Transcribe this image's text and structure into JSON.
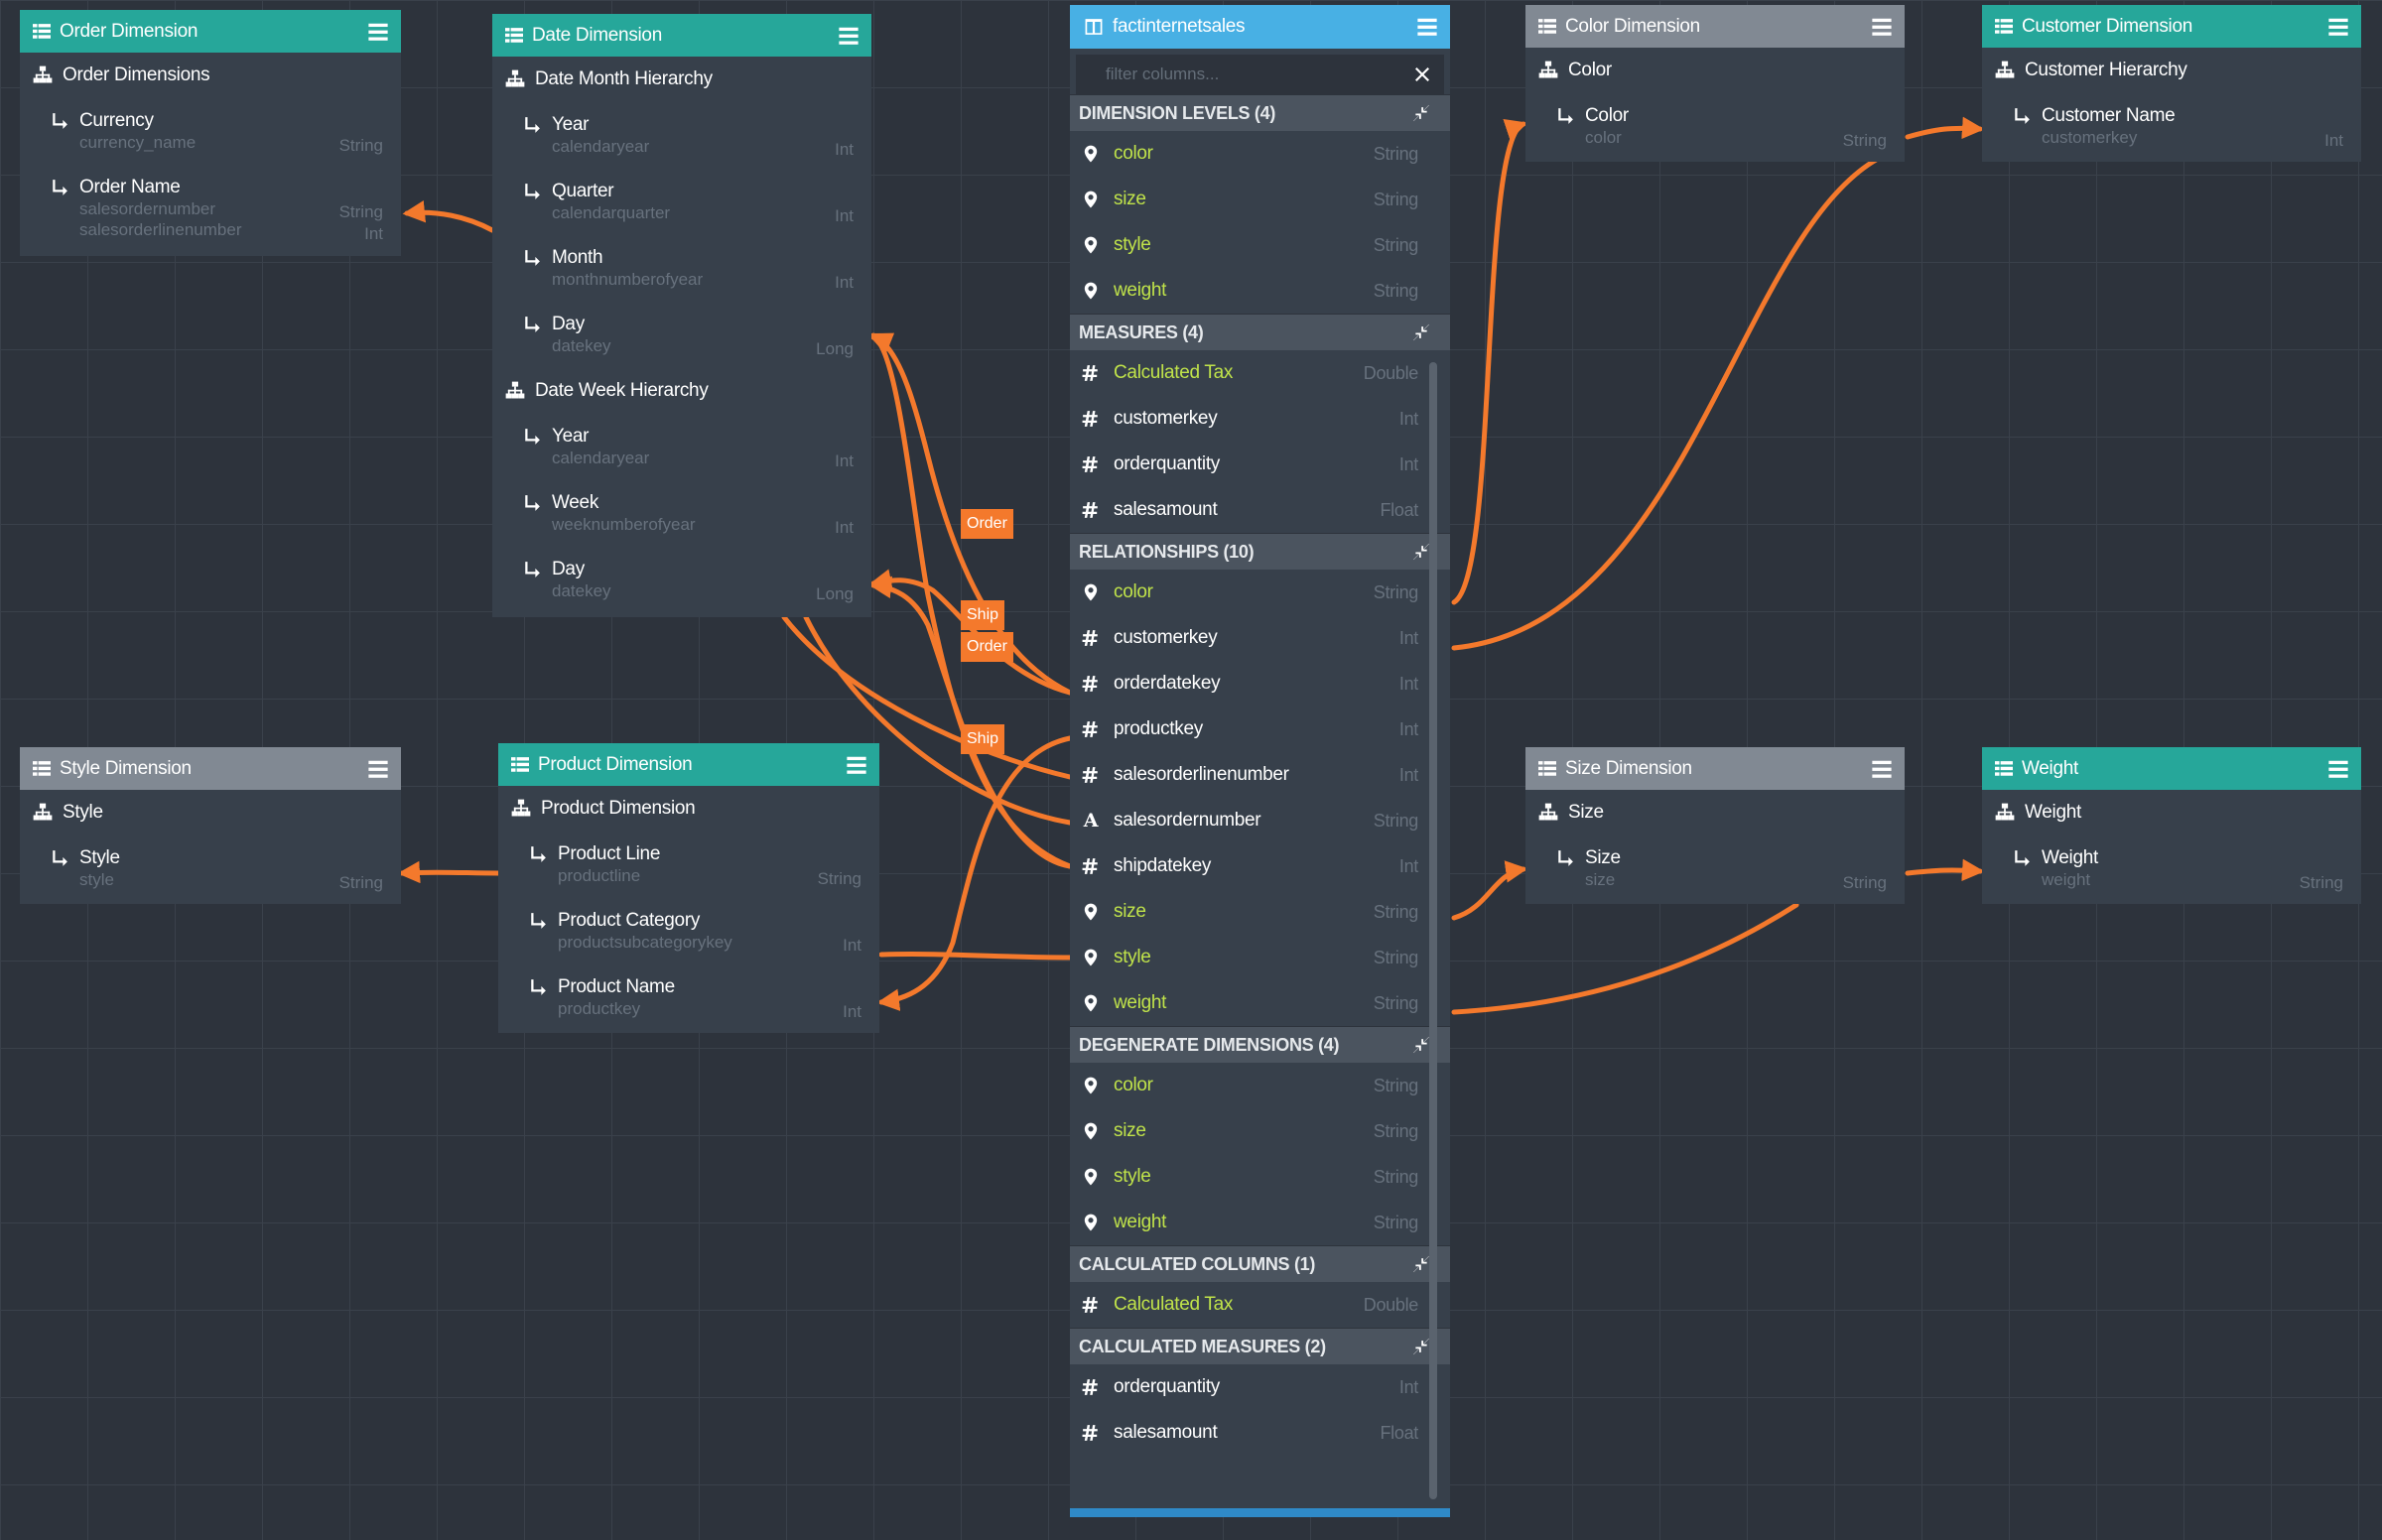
{
  "colors": {
    "teal_header": "#26a79a",
    "grey_header": "#818993",
    "fact_header": "#48b0e4",
    "link": "#f4792c",
    "canvas": "#2d333c",
    "card": "#37404b",
    "measure_green": "#c0e34a"
  },
  "icons": {
    "table": "table-icon",
    "hierarchy": "sitemap-icon",
    "level": "level-arrow-icon",
    "menu": "hamburger-menu-icon",
    "dimension_field": "map-marker-icon",
    "numeric_field": "hash-icon",
    "text_field": "text-a-icon",
    "collapse": "collapse-arrows-icon",
    "clear": "close-icon",
    "fact_table": "columns-icon"
  },
  "order_dimension": {
    "title": "Order Dimension",
    "hierarchy": "Order Dimensions",
    "levels": [
      {
        "name": "Currency",
        "column": "currency_name",
        "type": "String"
      },
      {
        "name": "Order Name",
        "column": "salesordernumber",
        "type": "String",
        "column2": "salesorderlinenumber",
        "type2": "Int"
      }
    ]
  },
  "date_dimension": {
    "title": "Date Dimension",
    "hierarchies": [
      {
        "name": "Date Month Hierarchy",
        "levels": [
          {
            "name": "Year",
            "column": "calendaryear",
            "type": "Int"
          },
          {
            "name": "Quarter",
            "column": "calendarquarter",
            "type": "Int"
          },
          {
            "name": "Month",
            "column": "monthnumberofyear",
            "type": "Int"
          },
          {
            "name": "Day",
            "column": "datekey",
            "type": "Long"
          }
        ]
      },
      {
        "name": "Date Week Hierarchy",
        "levels": [
          {
            "name": "Year",
            "column": "calendaryear",
            "type": "Int"
          },
          {
            "name": "Week",
            "column": "weeknumberofyear",
            "type": "Int"
          },
          {
            "name": "Day",
            "column": "datekey",
            "type": "Long"
          }
        ]
      }
    ]
  },
  "style_dimension": {
    "title": "Style Dimension",
    "hierarchy": "Style",
    "levels": [
      {
        "name": "Style",
        "column": "style",
        "type": "String"
      }
    ]
  },
  "product_dimension": {
    "title": "Product Dimension",
    "hierarchy": "Product Dimension",
    "levels": [
      {
        "name": "Product Line",
        "column": "productline",
        "type": "String"
      },
      {
        "name": "Product Category",
        "column": "productsubcategorykey",
        "type": "Int"
      },
      {
        "name": "Product Name",
        "column": "productkey",
        "type": "Int"
      }
    ]
  },
  "color_dimension": {
    "title": "Color Dimension",
    "hierarchy": "Color",
    "levels": [
      {
        "name": "Color",
        "column": "color",
        "type": "String"
      }
    ]
  },
  "customer_dimension": {
    "title": "Customer Dimension",
    "hierarchy": "Customer Hierarchy",
    "levels": [
      {
        "name": "Customer Name",
        "column": "customerkey",
        "type": "Int"
      }
    ]
  },
  "size_dimension": {
    "title": "Size Dimension",
    "hierarchy": "Size",
    "levels": [
      {
        "name": "Size",
        "column": "size",
        "type": "String"
      }
    ]
  },
  "weight_dimension": {
    "title": "Weight",
    "hierarchy": "Weight",
    "levels": [
      {
        "name": "Weight",
        "column": "weight",
        "type": "String"
      }
    ]
  },
  "fact": {
    "title": "factinternetsales",
    "filter_placeholder": "filter columns...",
    "sections": [
      {
        "title": "DIMENSION LEVELS (4)",
        "rows": [
          {
            "icon": "marker",
            "name": "color",
            "type": "String",
            "green": true
          },
          {
            "icon": "marker",
            "name": "size",
            "type": "String",
            "green": true
          },
          {
            "icon": "marker",
            "name": "style",
            "type": "String",
            "green": true
          },
          {
            "icon": "marker",
            "name": "weight",
            "type": "String",
            "green": true
          }
        ]
      },
      {
        "title": "MEASURES (4)",
        "rows": [
          {
            "icon": "hash",
            "name": "Calculated Tax",
            "type": "Double",
            "green": true
          },
          {
            "icon": "hash",
            "name": "customerkey",
            "type": "Int",
            "green": false
          },
          {
            "icon": "hash",
            "name": "orderquantity",
            "type": "Int",
            "green": false
          },
          {
            "icon": "hash",
            "name": "salesamount",
            "type": "Float",
            "green": false
          }
        ]
      },
      {
        "title": "RELATIONSHIPS (10)",
        "rows": [
          {
            "icon": "marker",
            "name": "color",
            "type": "String",
            "green": true
          },
          {
            "icon": "hash",
            "name": "customerkey",
            "type": "Int",
            "green": false
          },
          {
            "icon": "hash",
            "name": "orderdatekey",
            "type": "Int",
            "green": false
          },
          {
            "icon": "hash",
            "name": "productkey",
            "type": "Int",
            "green": false
          },
          {
            "icon": "hash",
            "name": "salesorderlinenumber",
            "type": "Int",
            "green": false
          },
          {
            "icon": "text",
            "name": "salesordernumber",
            "type": "String",
            "green": false
          },
          {
            "icon": "hash",
            "name": "shipdatekey",
            "type": "Int",
            "green": false
          },
          {
            "icon": "marker",
            "name": "size",
            "type": "String",
            "green": true
          },
          {
            "icon": "marker",
            "name": "style",
            "type": "String",
            "green": true
          },
          {
            "icon": "marker",
            "name": "weight",
            "type": "String",
            "green": true
          }
        ]
      },
      {
        "title": "DEGENERATE DIMENSIONS (4)",
        "rows": [
          {
            "icon": "marker",
            "name": "color",
            "type": "String",
            "green": true
          },
          {
            "icon": "marker",
            "name": "size",
            "type": "String",
            "green": true
          },
          {
            "icon": "marker",
            "name": "style",
            "type": "String",
            "green": true
          },
          {
            "icon": "marker",
            "name": "weight",
            "type": "String",
            "green": true
          }
        ]
      },
      {
        "title": "CALCULATED COLUMNS (1)",
        "rows": [
          {
            "icon": "hash",
            "name": "Calculated Tax",
            "type": "Double",
            "green": true
          }
        ]
      },
      {
        "title": "CALCULATED MEASURES (2)",
        "rows": [
          {
            "icon": "hash",
            "name": "orderquantity",
            "type": "Int",
            "green": false
          },
          {
            "icon": "hash",
            "name": "salesamount",
            "type": "Float",
            "green": false
          }
        ]
      }
    ]
  },
  "link_labels": {
    "order_1": "Order",
    "ship_1": "Ship",
    "order_2": "Order",
    "ship_2": "Ship"
  }
}
